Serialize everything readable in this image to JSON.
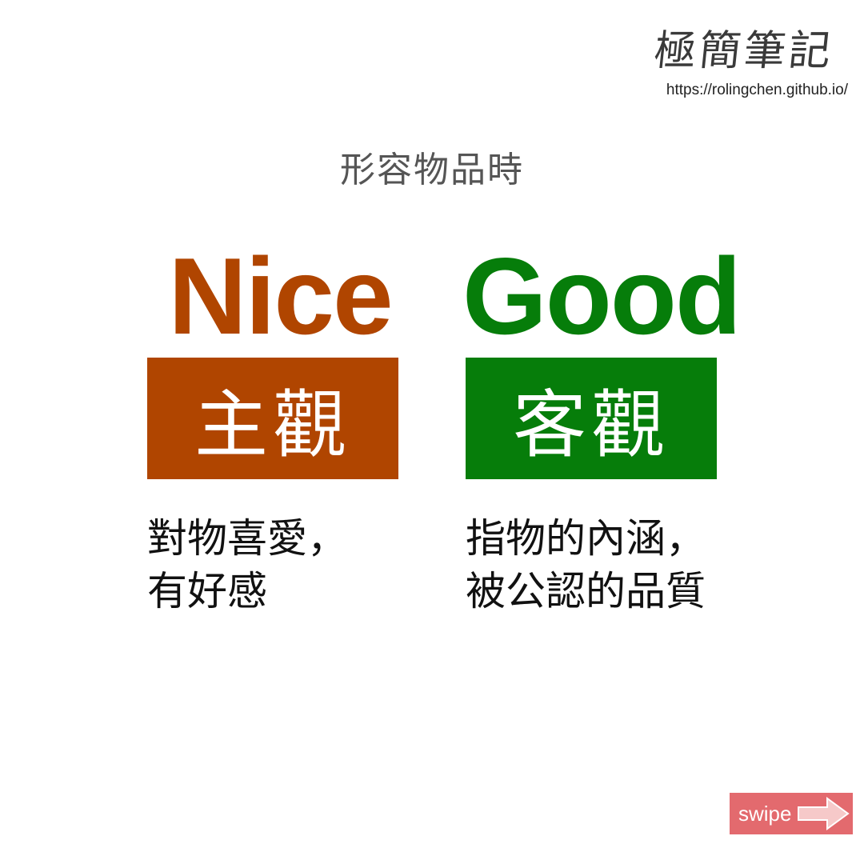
{
  "brand": {
    "logo_text": "極簡筆記",
    "url": "https://rolingchen.github.io/"
  },
  "subtitle": "形容物品時",
  "left": {
    "word": "Nice",
    "label": "主觀",
    "desc_line1": "對物喜愛，",
    "desc_line2": "有好感",
    "color": "#b04500"
  },
  "right": {
    "word": "Good",
    "label": "客觀",
    "desc_line1": "指物的內涵，",
    "desc_line2": "被公認的品質",
    "color": "#067d0a"
  },
  "swipe": {
    "label": "swipe",
    "icon": "arrow-right-icon",
    "color": "#e36a6e"
  }
}
